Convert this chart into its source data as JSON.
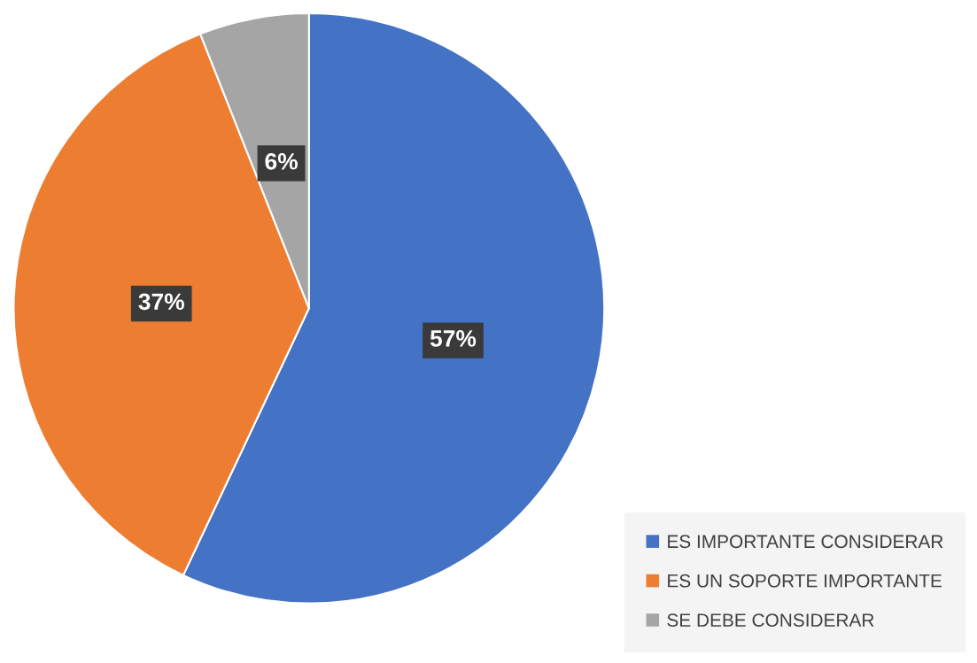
{
  "chart_data": {
    "type": "pie",
    "categories": [
      "ES IMPORTANTE CONSIDERAR",
      "ES UN SOPORTE IMPORTANTE",
      "SE DEBE CONSIDERAR"
    ],
    "values": [
      57,
      37,
      6
    ],
    "colors": [
      "#4472c4",
      "#ed7d31",
      "#a5a5a5"
    ],
    "value_labels": [
      "57%",
      "37%",
      "6%"
    ],
    "legend": "bottom right"
  }
}
